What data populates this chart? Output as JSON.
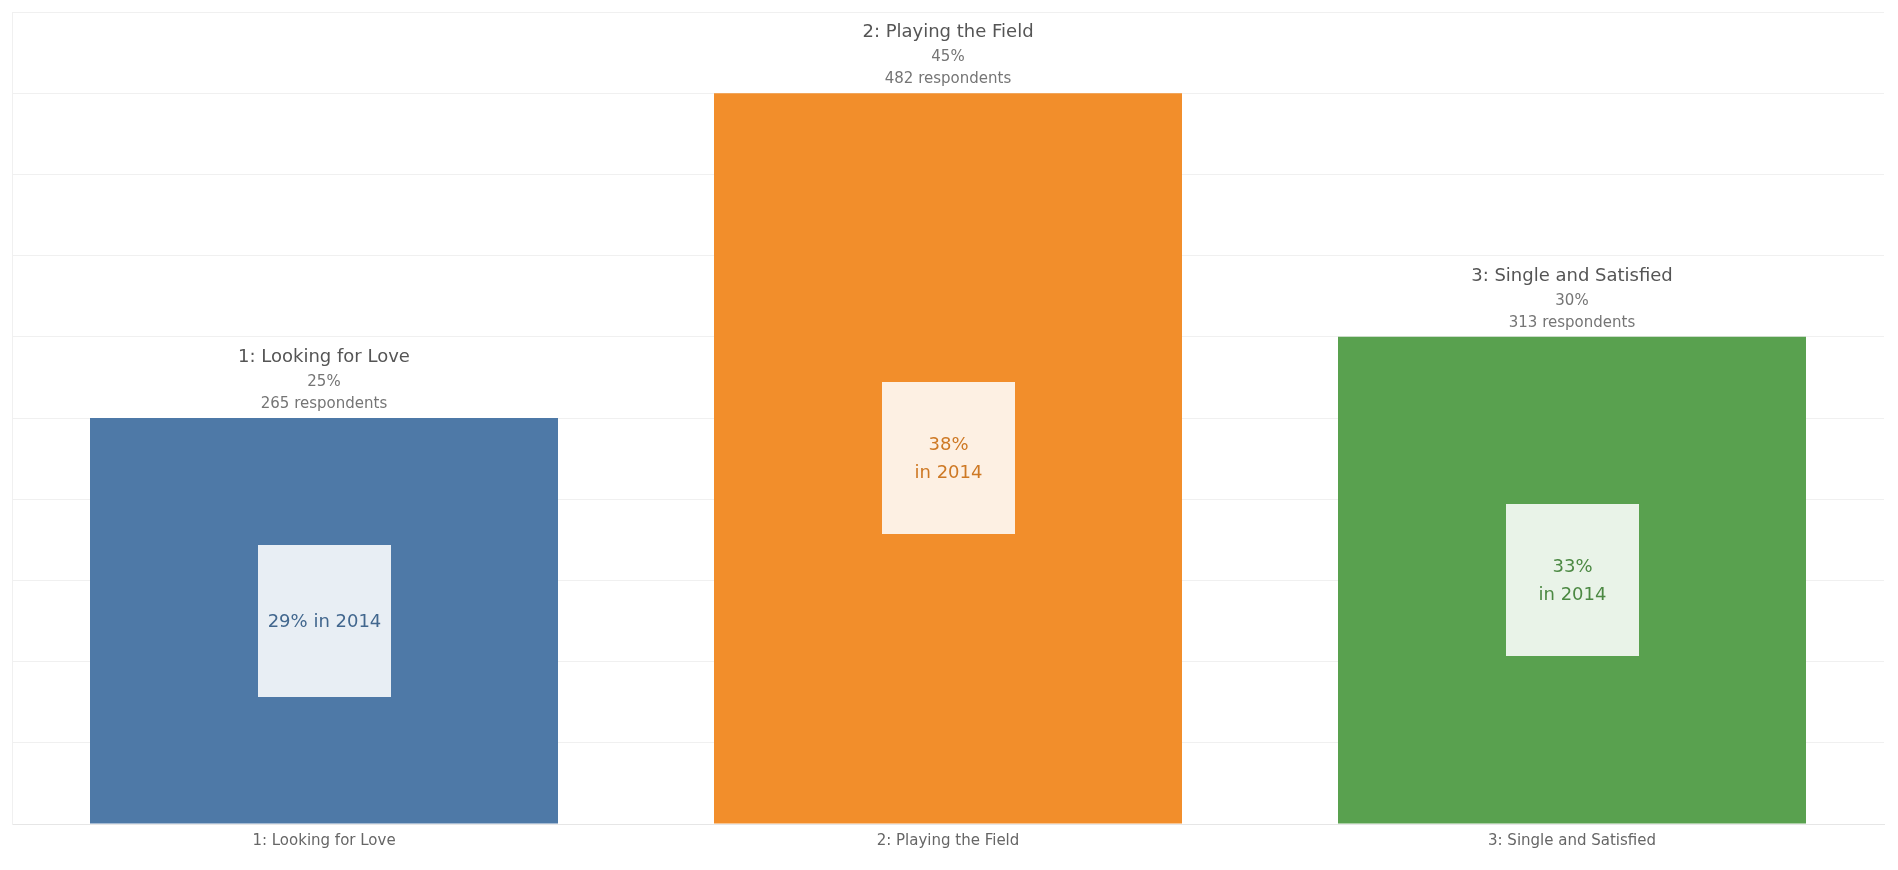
{
  "chart_data": {
    "type": "bar",
    "categories": [
      "1: Looking for Love",
      "2: Playing the Field",
      "3: Single and Satisfied"
    ],
    "values": [
      25,
      45,
      30
    ],
    "colors": [
      "#4e79a7",
      "#f28e2b",
      "#59a14f"
    ],
    "value_labels": [
      "25%",
      "45%",
      "30%"
    ],
    "annotations": [
      {
        "text": "265 respondents",
        "x": "1: Looking for Love",
        "y": 25
      },
      {
        "text": "482 respondents",
        "x": "2: Playing the Field",
        "y": 45
      },
      {
        "text": "313 respondents",
        "x": "3: Single and Satisfied",
        "y": 30
      },
      "29% in 2014",
      "38%\nin 2014",
      "33%\nin 2014"
    ],
    "tick_labels": "x",
    "grid": "y",
    "legend": false
  }
}
